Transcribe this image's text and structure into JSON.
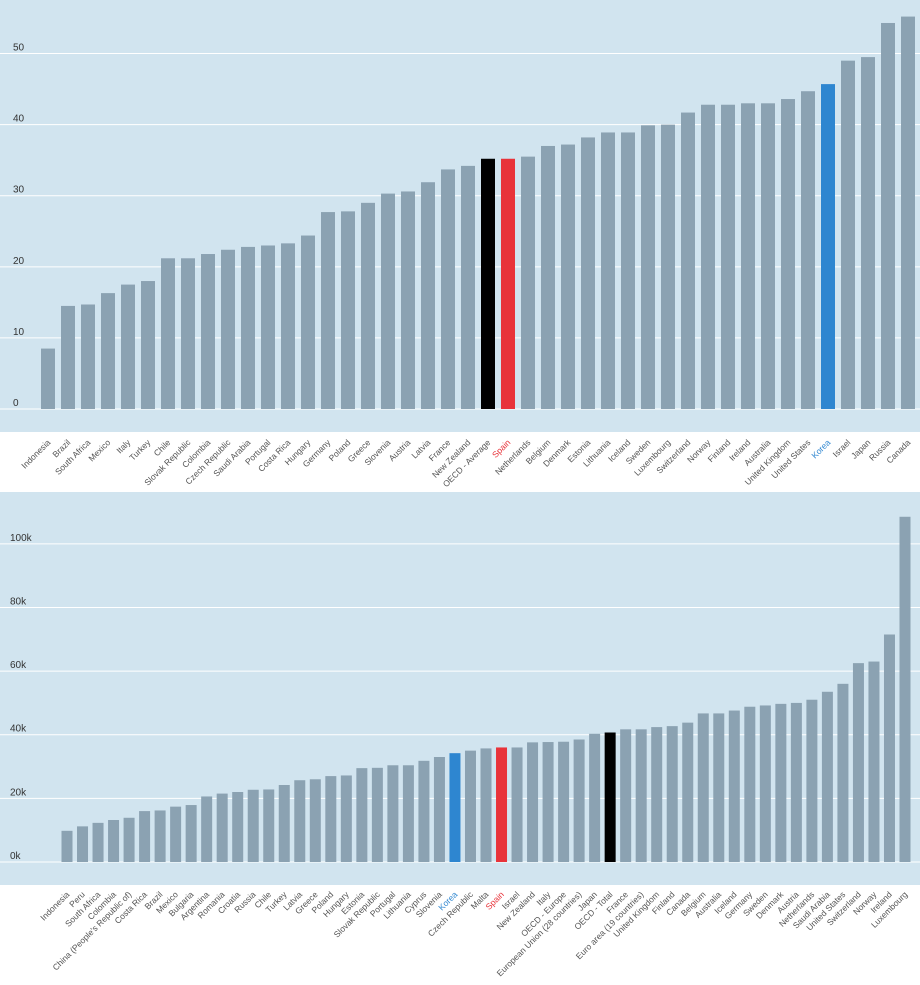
{
  "colors": {
    "background": "#d1e4ef",
    "bar": "#8ba2b2",
    "average_bar": "#000000",
    "spain": "#e8333a",
    "korea": "#2e86d0",
    "spain_label": "#e8333a",
    "korea_label": "#2e86d0",
    "grid": "#ffffff"
  },
  "chart_data": [
    {
      "type": "bar",
      "title": "",
      "xlabel": "",
      "ylabel": "",
      "ylim": [
        0,
        55
      ],
      "yticks": [
        0,
        10,
        20,
        30,
        40,
        50
      ],
      "ytick_labels": [
        "0",
        "10",
        "20",
        "30",
        "40",
        "50"
      ],
      "grid": true,
      "highlight": {
        "average": "OECD - Average",
        "spain": "Spain",
        "korea": "Korea"
      },
      "categories": [
        "Indonesia",
        "Brazil",
        "South Africa",
        "Mexico",
        "Italy",
        "Turkey",
        "Chile",
        "Slovak Republic",
        "Colombia",
        "Czech Republic",
        "Saudi Arabia",
        "Portugal",
        "Costa Rica",
        "Hungary",
        "Germany",
        "Poland",
        "Greece",
        "Slovenia",
        "Austria",
        "Latvia",
        "France",
        "New Zealand",
        "OECD - Average",
        "Spain",
        "Netherlands",
        "Belgium",
        "Denmark",
        "Estonia",
        "Lithuania",
        "Iceland",
        "Sweden",
        "Luxembourg",
        "Switzerland",
        "Norway",
        "Finland",
        "Ireland",
        "Australia",
        "United Kingdom",
        "United States",
        "Korea",
        "Israel",
        "Japan",
        "Russia",
        "Canada"
      ],
      "values": [
        8.5,
        14.5,
        14.7,
        16.3,
        17.5,
        18,
        21.2,
        21.2,
        21.8,
        22.4,
        22.8,
        23,
        23.3,
        24.4,
        27.7,
        27.8,
        29,
        30.3,
        30.6,
        31.9,
        33.7,
        34.2,
        35.2,
        35.2,
        35.5,
        37,
        37.2,
        38.2,
        38.9,
        38.9,
        39.9,
        40,
        41.7,
        42.8,
        42.8,
        43,
        43,
        43.6,
        44.7,
        45.7,
        49,
        49.5,
        54.3,
        55.2
      ]
    },
    {
      "type": "bar",
      "title": "",
      "xlabel": "",
      "ylabel": "",
      "ylim": [
        0,
        110000
      ],
      "yticks": [
        0,
        20000,
        40000,
        60000,
        80000,
        100000
      ],
      "ytick_labels": [
        "0k",
        "20k",
        "40k",
        "60k",
        "80k",
        "100k"
      ],
      "grid": true,
      "highlight": {
        "average": "OECD - Total",
        "spain": "Spain",
        "korea": "Korea"
      },
      "categories": [
        "Indonesia",
        "Peru",
        "South Africa",
        "Colombia",
        "China (People's Republic of)",
        "Costa Rica",
        "Brazil",
        "Mexico",
        "Bulgaria",
        "Argentina",
        "Romania",
        "Croatia",
        "Russia",
        "Chile",
        "Turkey",
        "Latvia",
        "Greece",
        "Poland",
        "Hungary",
        "Estonia",
        "Slovak Republic",
        "Portugal",
        "Lithuania",
        "Cyprus",
        "Slovenia",
        "Korea",
        "Czech Republic",
        "Malta",
        "Spain",
        "Israel",
        "New Zealand",
        "Italy",
        "OECD - Europe",
        "European Union (28 countries)",
        "Japan",
        "OECD - Total",
        "France",
        "Euro area (19 countries)",
        "United Kingdom",
        "Finland",
        "Canada",
        "Belgium",
        "Australia",
        "Iceland",
        "Germany",
        "Sweden",
        "Denmark",
        "Austria",
        "Netherlands",
        "Saudi Arabia",
        "United States",
        "Switzerland",
        "Norway",
        "Ireland",
        "Luxembourg"
      ],
      "values": [
        9800,
        11200,
        12300,
        13200,
        13900,
        16000,
        16200,
        17400,
        17900,
        20600,
        21500,
        22000,
        22700,
        22800,
        24200,
        25700,
        26000,
        27000,
        27200,
        29500,
        29600,
        30400,
        30400,
        31800,
        33000,
        34200,
        35000,
        35700,
        36000,
        36000,
        37600,
        37700,
        37800,
        38500,
        40300,
        40700,
        41700,
        41700,
        42400,
        42700,
        43800,
        46700,
        46700,
        47600,
        48800,
        49200,
        49700,
        50000,
        51000,
        53500,
        56000,
        62500,
        63000,
        71500,
        108500
      ]
    }
  ]
}
